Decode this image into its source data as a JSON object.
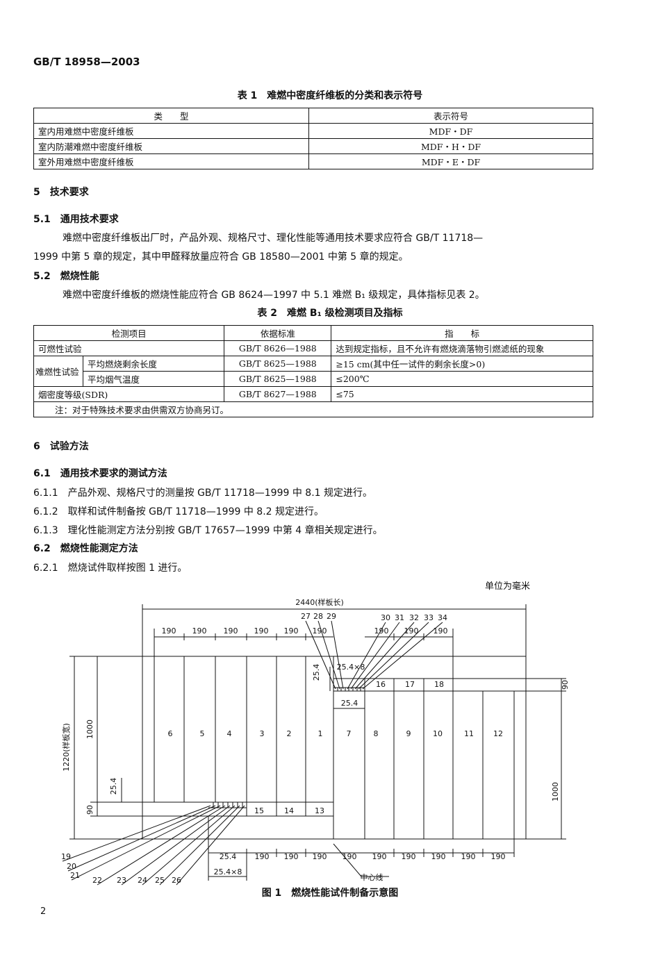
{
  "header": {
    "code": "GB/T 18958—2003"
  },
  "table1": {
    "title": "表 1　难燃中密度纤维板的分类和表示符号",
    "headers": [
      "类　　型",
      "表示符号"
    ],
    "rows": [
      [
        "室内用难燃中密度纤维板",
        "MDF・DF"
      ],
      [
        "室内防潮难燃中密度纤维板",
        "MDF・H・DF"
      ],
      [
        "室外用难燃中密度纤维板",
        "MDF・E・DF"
      ]
    ]
  },
  "body1": [
    "5　技术要求",
    "5.1　通用技术要求",
    "难燃中密度纤维板出厂时，产品外观、规格尺寸、理化性能等通用技术要求应符合 GB/T 11718—",
    "1999 中第 5 章的规定，其中甲醛释放量应符合 GB 18580—2001 中第 5 章的规定。",
    "5.2　燃烧性能",
    "难燃中密度纤维板的燃烧性能应符合 GB 8624—1997 中 5.1 难燃 B₁ 级规定，具体指标见表 2。"
  ],
  "table2": {
    "title": "表 2　难燃 B₁ 级检测项目及指标",
    "headers": [
      "检测项目",
      "依据标准",
      "指　　标"
    ],
    "row1": [
      "可燃性试验",
      "GB/T 8626—1988",
      "达到规定指标，且不允许有燃烧滴落物引燃滤纸的现象"
    ],
    "group": {
      "name": "难燃性试验",
      "rows": [
        [
          "平均燃烧剩余长度",
          "GB/T 8625—1988",
          "≥15 cm(其中任一试件的剩余长度>0)"
        ],
        [
          "平均烟气温度",
          "GB/T 8625—1988",
          "≤200℃"
        ]
      ]
    },
    "row4": [
      "烟密度等级(SDR)",
      "GB/T 8627—1988",
      "≤75"
    ],
    "note": "注：对于特殊技术要求由供需双方协商另订。"
  },
  "body2": [
    "6　试验方法",
    "6.1　通用技术要求的测试方法",
    "6.1.1　产品外观、规格尺寸的测量按 GB/T 11718—1999 中 8.1 规定进行。",
    "6.1.2　取样和试件制备按 GB/T 11718—1999 中 8.2 规定进行。",
    "6.1.3　理化性能测定方法分别按 GB/T 17657—1999 中第 4 章相关规定进行。",
    "6.2　燃烧性能测定方法",
    "6.2.1　燃烧试件取样按图 1 进行。"
  ],
  "figure": {
    "unit": "单位为毫米",
    "caption": "图 1　燃烧性能试件制备示意图",
    "labels": [
      "2440(样板长)",
      "190",
      "190",
      "190",
      "190",
      "190",
      "190",
      "27",
      "28",
      "29",
      "30",
      "31",
      "32",
      "33",
      "34",
      "190",
      "190",
      "190",
      "25.4×8",
      "25.4",
      "90",
      "25.4",
      "1220(样板宽)",
      "1000",
      "6",
      "5",
      "4",
      "3",
      "2",
      "1",
      "7",
      "8",
      "9",
      "10",
      "11",
      "12",
      "16",
      "17",
      "18",
      "25.4",
      "90",
      "1000",
      "15",
      "14",
      "13",
      "25.4",
      "190",
      "190",
      "190",
      "190",
      "190",
      "190",
      "190",
      "190",
      "190",
      "19",
      "20",
      "21",
      "22",
      "23",
      "24",
      "25",
      "26",
      "25.4×8",
      "中心线"
    ]
  },
  "page_number": "2"
}
